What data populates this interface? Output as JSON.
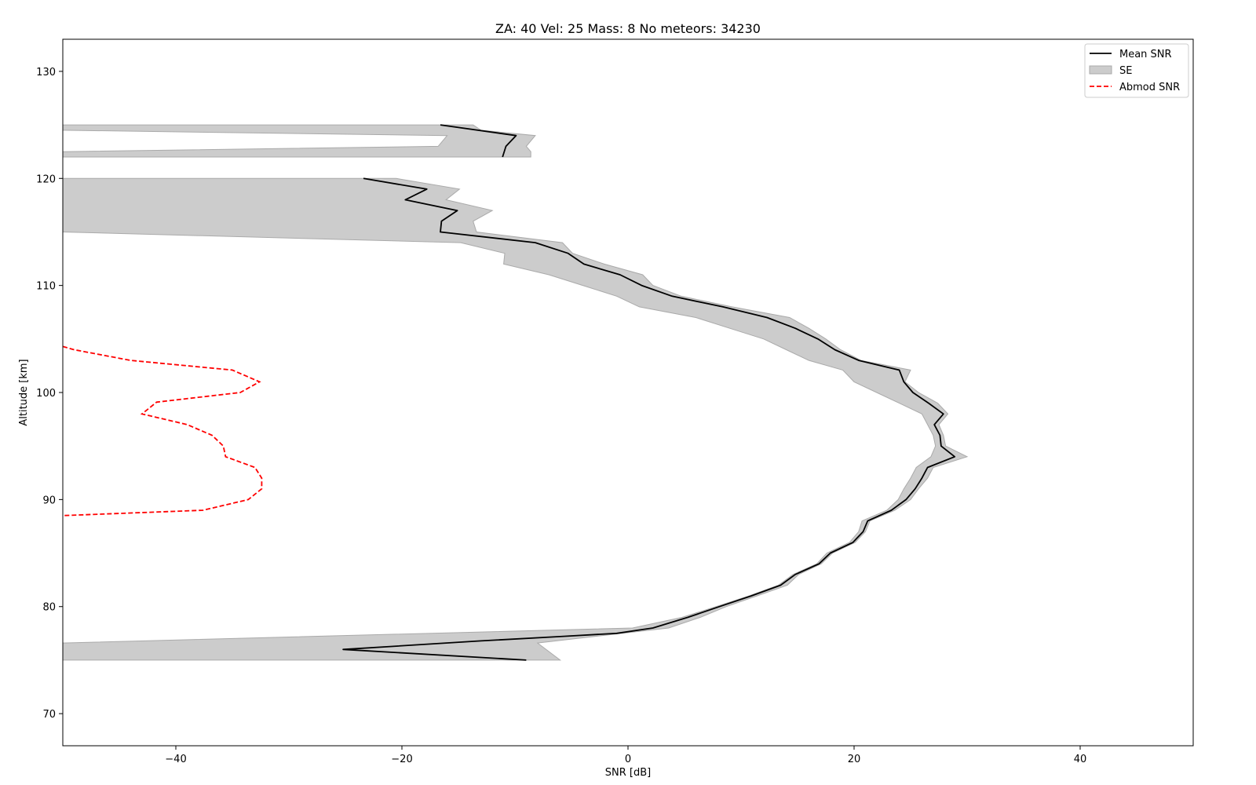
{
  "chart_data": {
    "type": "line",
    "title": "ZA: 40 Vel: 25 Mass: 8 No meteors: 34230",
    "xlabel": "SNR [dB]",
    "ylabel": "Altitude [km]",
    "xlim": [
      -50,
      50
    ],
    "ylim": [
      67,
      133
    ],
    "xticks": [
      -40,
      -20,
      0,
      20,
      40
    ],
    "xtick_labels": [
      "−40",
      "−20",
      "0",
      "20",
      "40"
    ],
    "yticks": [
      70,
      80,
      90,
      100,
      110,
      120,
      130
    ],
    "ytick_labels": [
      "70",
      "80",
      "90",
      "100",
      "110",
      "120",
      "130"
    ],
    "grid": false,
    "legend_position": "top-right",
    "legend": [
      "Mean SNR",
      "SE",
      "Abmod SNR"
    ],
    "colors": {
      "mean": "#000000",
      "se_fill": "#cccccc",
      "se_edge": "#aaaaaa",
      "abmod": "#ff0000"
    },
    "series": [
      {
        "name": "Mean SNR",
        "segments": [
          [
            [
              -16.6,
              125
            ],
            [
              -9.9,
              124
            ],
            [
              -10.8,
              123
            ],
            [
              -11.1,
              122
            ]
          ],
          [
            [
              -23.4,
              120
            ],
            [
              -17.8,
              119
            ],
            [
              -19.7,
              118
            ],
            [
              -15.1,
              117
            ],
            [
              -16.5,
              116
            ],
            [
              -16.6,
              115
            ],
            [
              -8.2,
              114
            ],
            [
              -5.3,
              113
            ],
            [
              -3.9,
              112
            ],
            [
              -0.7,
              111
            ],
            [
              1.2,
              110
            ],
            [
              3.9,
              109
            ],
            [
              8.4,
              108
            ],
            [
              12.3,
              107
            ],
            [
              14.8,
              106
            ],
            [
              16.8,
              105
            ],
            [
              18.3,
              104
            ],
            [
              20.4,
              103
            ],
            [
              24.0,
              102.1
            ],
            [
              24.4,
              101
            ],
            [
              25.2,
              100
            ],
            [
              26.6,
              99
            ],
            [
              27.9,
              98
            ],
            [
              27.1,
              97
            ],
            [
              27.6,
              96
            ],
            [
              27.7,
              95
            ],
            [
              28.9,
              94
            ],
            [
              26.5,
              93
            ],
            [
              26.0,
              92
            ],
            [
              25.4,
              91
            ],
            [
              24.6,
              90
            ],
            [
              23.3,
              89
            ],
            [
              21.2,
              88
            ],
            [
              20.8,
              87
            ],
            [
              19.9,
              86
            ],
            [
              17.9,
              85
            ],
            [
              16.9,
              84
            ],
            [
              14.8,
              83
            ],
            [
              13.5,
              82
            ],
            [
              10.9,
              81
            ],
            [
              8.1,
              80
            ],
            [
              5.3,
              79
            ],
            [
              2.2,
              78
            ],
            [
              -1.0,
              77.5
            ],
            [
              -6.0,
              77.2
            ],
            [
              -13.0,
              76.8
            ],
            [
              -25.2,
              76
            ],
            [
              -9.0,
              75
            ]
          ]
        ]
      },
      {
        "name": "SE",
        "bands": [
          [
            [
              -50,
              125,
              -13.7
            ],
            [
              -50,
              124.5,
              -13.0
            ],
            [
              -16.0,
              124,
              -8.2
            ],
            [
              -16.8,
              123,
              -9.0
            ],
            [
              -50,
              122.5,
              -8.6
            ],
            [
              -50,
              122,
              -8.6
            ]
          ],
          [
            [
              -50,
              120,
              -20.5
            ],
            [
              -50,
              119,
              -14.9
            ],
            [
              -50,
              118,
              -16.1
            ],
            [
              -50,
              117,
              -12.0
            ],
            [
              -50,
              116,
              -13.7
            ],
            [
              -50,
              115,
              -13.4
            ],
            [
              -14.8,
              114,
              -5.8
            ],
            [
              -10.9,
              113,
              -4.9
            ],
            [
              -11.0,
              112,
              -2.1
            ],
            [
              -7.0,
              111,
              1.3
            ],
            [
              -4.0,
              110,
              2.2
            ],
            [
              -1.0,
              109,
              4.7
            ],
            [
              1.0,
              108,
              9.2
            ],
            [
              6.0,
              107,
              14.3
            ],
            [
              9.0,
              106,
              16.0
            ],
            [
              12.0,
              105,
              17.5
            ],
            [
              14.0,
              104,
              18.8
            ],
            [
              16.0,
              103,
              20.6
            ],
            [
              19.0,
              102.1,
              25.0
            ],
            [
              20.0,
              101,
              24.5
            ],
            [
              22.0,
              100,
              25.7
            ],
            [
              24.0,
              99,
              27.4
            ],
            [
              26.0,
              98,
              28.3
            ],
            [
              26.5,
              97,
              27.5
            ],
            [
              27.0,
              96,
              27.9
            ],
            [
              27.2,
              95,
              28.1
            ],
            [
              26.8,
              94,
              30.0
            ],
            [
              25.5,
              93,
              27.0
            ],
            [
              25.0,
              92,
              26.5
            ],
            [
              24.4,
              91,
              25.7
            ],
            [
              23.9,
              90,
              25.0
            ],
            [
              22.9,
              89,
              23.6
            ],
            [
              20.7,
              88,
              21.4
            ],
            [
              20.4,
              87,
              21.0
            ],
            [
              19.6,
              86,
              20.1
            ],
            [
              17.6,
              85,
              18.1
            ],
            [
              16.7,
              84,
              17.1
            ],
            [
              14.6,
              83,
              15.1
            ],
            [
              13.3,
              82,
              14.1
            ],
            [
              10.7,
              81,
              11.4
            ],
            [
              7.8,
              80,
              8.7
            ],
            [
              4.8,
              79,
              6.4
            ],
            [
              0.4,
              78,
              3.6
            ],
            [
              -50,
              76.6,
              -8.0
            ],
            [
              -50,
              75,
              -6.0
            ]
          ]
        ]
      },
      {
        "name": "Abmod SNR",
        "points": [
          [
            -50,
            104.3
          ],
          [
            -49,
            104
          ],
          [
            -44,
            103
          ],
          [
            -35,
            102.1
          ],
          [
            -32.6,
            101
          ],
          [
            -34.3,
            100
          ],
          [
            -41.7,
            99.1
          ],
          [
            -43,
            98
          ],
          [
            -39,
            97
          ],
          [
            -36.8,
            96
          ],
          [
            -35.8,
            95
          ],
          [
            -35.6,
            94
          ],
          [
            -33,
            93
          ],
          [
            -32.4,
            92
          ],
          [
            -32.4,
            91
          ],
          [
            -33.6,
            90
          ],
          [
            -37.6,
            89
          ],
          [
            -50,
            88.5
          ]
        ]
      }
    ]
  }
}
